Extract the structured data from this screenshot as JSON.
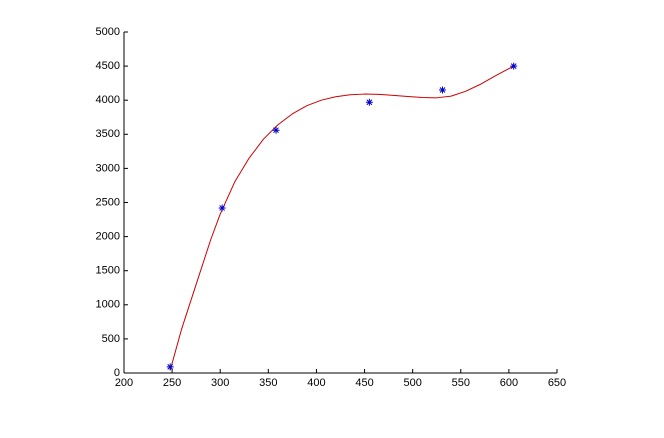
{
  "chart_data": {
    "type": "scatter",
    "xlim": [
      200,
      650
    ],
    "ylim": [
      0,
      5000
    ],
    "xticks": [
      200,
      250,
      300,
      350,
      400,
      450,
      500,
      550,
      600,
      650
    ],
    "yticks": [
      0,
      500,
      1000,
      1500,
      2000,
      2500,
      3000,
      3500,
      4000,
      4500,
      5000
    ],
    "grid": false,
    "series": [
      {
        "mode": "line",
        "color": "#cc0000",
        "x": [
          248,
          260,
          275,
          290,
          300,
          315,
          330,
          345,
          360,
          375,
          390,
          405,
          420,
          435,
          450,
          465,
          480,
          495,
          510,
          525,
          540,
          555,
          570,
          585,
          605
        ],
        "values": [
          40,
          650,
          1300,
          1950,
          2330,
          2800,
          3150,
          3430,
          3640,
          3800,
          3920,
          4000,
          4050,
          4080,
          4090,
          4085,
          4070,
          4055,
          4040,
          4035,
          4060,
          4130,
          4230,
          4350,
          4500
        ]
      },
      {
        "mode": "markers",
        "color": "#0000cc",
        "x": [
          248,
          302,
          358,
          455,
          531,
          605
        ],
        "values": [
          90,
          2420,
          3560,
          3970,
          4150,
          4500
        ]
      }
    ]
  }
}
